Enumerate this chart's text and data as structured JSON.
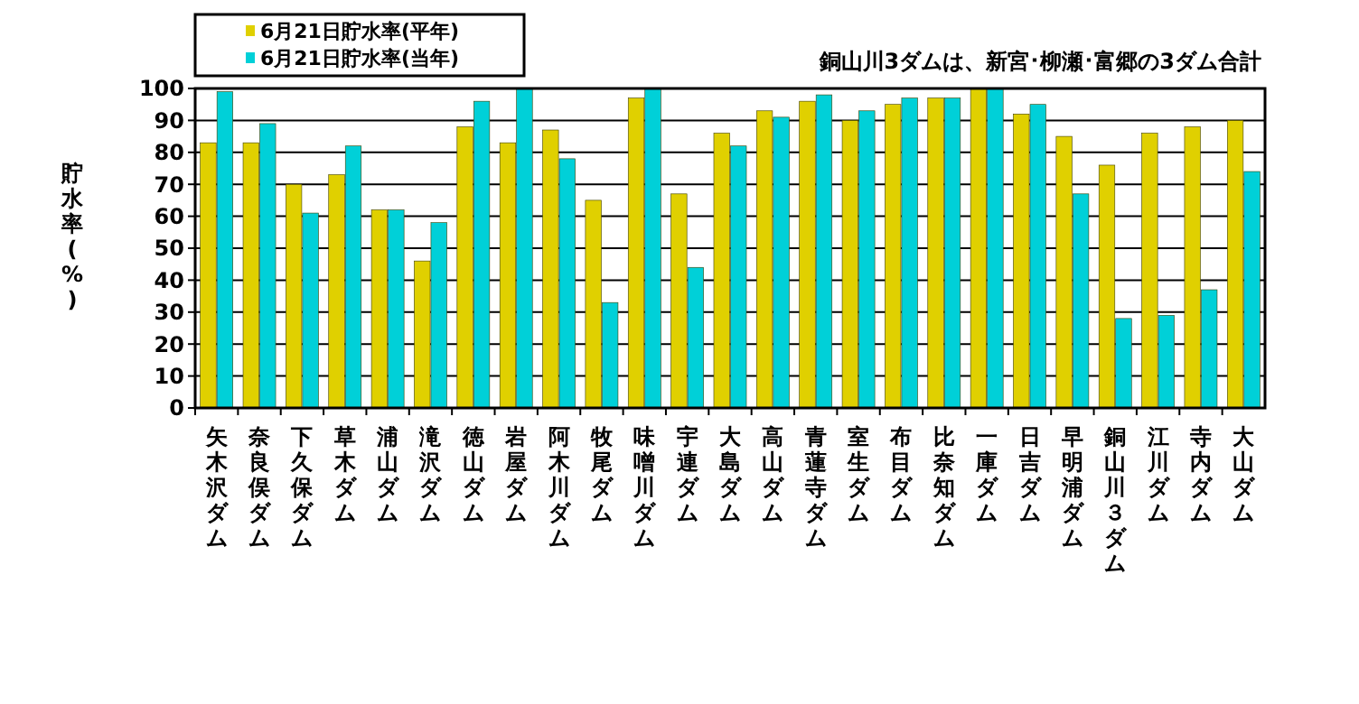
{
  "chart_data": {
    "type": "bar",
    "ylabel": "貯水率(%)",
    "annotations": [
      "銅山川3ダムは、新宮･柳瀬･富郷の3ダム合計"
    ],
    "categories": [
      "矢木沢ダム",
      "奈良俣ダム",
      "下久保ダム",
      "草木ダム",
      "浦山ダム",
      "滝沢ダム",
      "徳山ダム",
      "岩屋ダム",
      "阿木川ダム",
      "牧尾ダム",
      "味噌川ダム",
      "宇連ダム",
      "大島ダム",
      "高山ダム",
      "青蓮寺ダム",
      "室生ダム",
      "布目ダム",
      "比奈知ダム",
      "一庫ダム",
      "日吉ダム",
      "早明浦ダム",
      "銅山川３ダム",
      "江川ダム",
      "寺内ダム",
      "大山ダム"
    ],
    "series": [
      {
        "name": "6月21日貯水率(平年)",
        "color": "#e0d000",
        "values": [
          83,
          83,
          70,
          73,
          62,
          46,
          88,
          83,
          87,
          65,
          97,
          67,
          86,
          93,
          96,
          90,
          95,
          97,
          100,
          92,
          85,
          76,
          86,
          88,
          90
        ]
      },
      {
        "name": "6月21日貯水率(当年)",
        "color": "#00d0d8",
        "values": [
          99,
          89,
          61,
          82,
          62,
          58,
          96,
          100,
          78,
          33,
          100,
          44,
          82,
          91,
          98,
          93,
          97,
          97,
          100,
          95,
          67,
          28,
          29,
          37,
          74
        ]
      }
    ],
    "ylim": [
      0,
      100
    ],
    "yticks": [
      0,
      10,
      20,
      30,
      40,
      50,
      60,
      70,
      80,
      90,
      100
    ],
    "grid": "y",
    "legend": "top left"
  }
}
